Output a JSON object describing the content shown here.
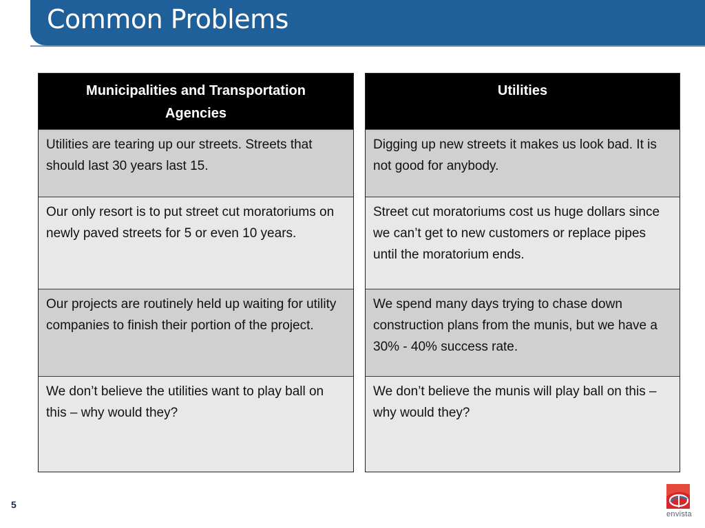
{
  "header": {
    "title": "Common Problems"
  },
  "tables": {
    "left": {
      "heading_line1": "Municipalities and Transportation",
      "heading_line2": "Agencies",
      "rows": [
        "Utilities are tearing up our streets. Streets that should last 30 years last 15.",
        "Our only resort is to put street cut moratoriums on newly paved streets for 5 or even 10 years.",
        "Our projects are routinely held up waiting for utility companies to finish their portion of the project.",
        "We don’t believe the utilities want to play ball on this – why would they?"
      ]
    },
    "right": {
      "heading": "Utilities",
      "rows": [
        "Digging up new streets it makes us look bad.  It is not good for anybody.",
        "Street cut moratoriums cost us huge dollars since we can’t get to new customers or replace pipes until the moratorium ends.",
        "We spend many days trying to chase down construction plans from the munis, but we have a 30% - 40% success rate.",
        "We don’t believe the munis will play ball on this – why would they?"
      ]
    }
  },
  "footer": {
    "page_number": "5",
    "logo_text": "envista"
  },
  "colors": {
    "title_bar": "#1f5f9a",
    "header_bg": "#000000",
    "row_dark": "#d0d0d0",
    "row_light": "#e8e8e8",
    "logo_red": "#d7262a"
  }
}
